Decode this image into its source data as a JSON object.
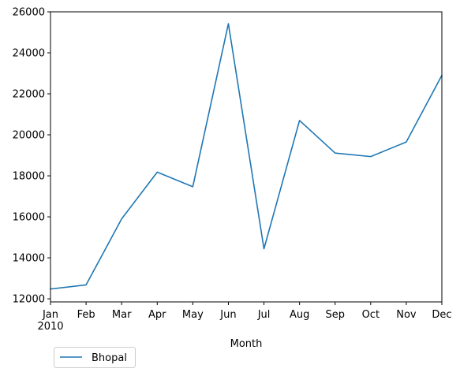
{
  "chart_data": {
    "type": "line",
    "xlabel": "Month",
    "ylabel": "",
    "x_tick_labels": [
      "Jan",
      "Feb",
      "Mar",
      "Apr",
      "May",
      "Jun",
      "Jul",
      "Aug",
      "Sep",
      "Oct",
      "Nov",
      "Dec"
    ],
    "x_year_label": "2010",
    "ylim": [
      11850,
      26000
    ],
    "y_ticks": [
      12000,
      14000,
      16000,
      18000,
      20000,
      22000,
      24000,
      26000
    ],
    "grid": false,
    "legend_position": "below-left",
    "series": [
      {
        "name": "Bhopal",
        "color": "#1f77b4",
        "x": [
          "2010-01",
          "2010-02",
          "2010-03",
          "2010-04",
          "2010-05",
          "2010-06",
          "2010-07",
          "2010-08",
          "2010-09",
          "2010-10",
          "2010-11",
          "2010-12"
        ],
        "values": [
          12480,
          12680,
          15900,
          18180,
          17470,
          25420,
          14440,
          20700,
          19110,
          18940,
          19650,
          22900
        ]
      }
    ]
  }
}
